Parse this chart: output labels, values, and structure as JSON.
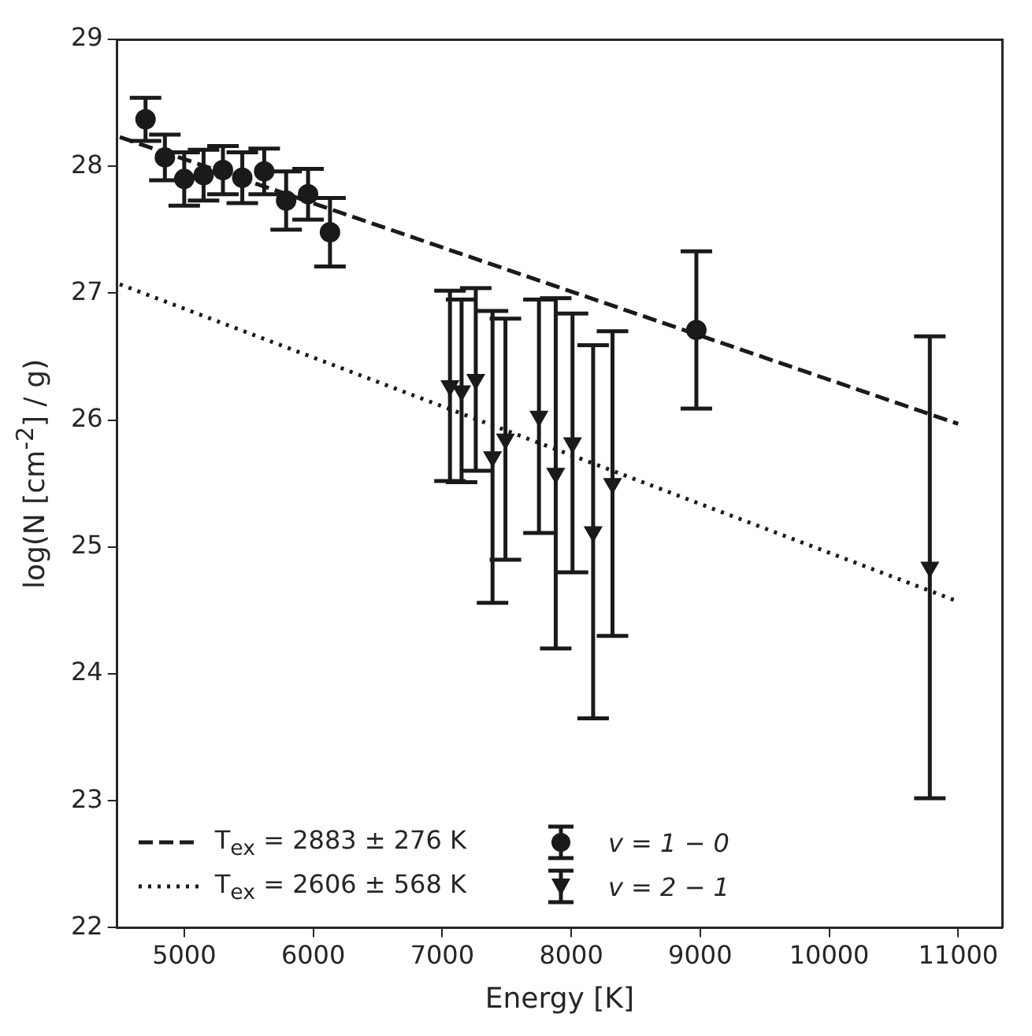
{
  "chart_data": {
    "type": "scatter",
    "xlabel": "Energy [K]",
    "ylabel": "log(N [cm$^{-2}$] / g)",
    "xlim": [
      4480,
      11340
    ],
    "ylim": [
      22,
      29
    ],
    "xticks": [
      5000,
      6000,
      7000,
      8000,
      9000,
      10000,
      11000
    ],
    "yticks": [
      22,
      23,
      24,
      25,
      26,
      27,
      28,
      29
    ],
    "grid": false,
    "legend": "bottom left",
    "series": [
      {
        "type": "line",
        "name": "T$_{ex}$ = 2883 ± 276 K",
        "color": "#1a1a1a",
        "line_style": "dashed",
        "marker": "none",
        "x": [
          4500,
          11000
        ],
        "values": [
          28.23,
          25.97
        ]
      },
      {
        "type": "line",
        "name": "T$_{ex}$ = 2606 ± 568 K",
        "color": "#1a1a1a",
        "line_style": "dotted",
        "marker": "none",
        "x": [
          4500,
          11000
        ],
        "values": [
          27.07,
          24.57
        ]
      },
      {
        "name": "v = 1 − 0",
        "color": "#1a1a1a",
        "marker": "circle",
        "x": [
          4700,
          4850,
          5000,
          5150,
          5300,
          5450,
          5620,
          5790,
          5960,
          6130,
          8970
        ],
        "values": [
          28.37,
          28.07,
          27.9,
          27.93,
          27.97,
          27.91,
          27.96,
          27.73,
          27.78,
          27.48,
          26.71
        ],
        "errors": [
          0.17,
          0.18,
          0.21,
          0.2,
          0.19,
          0.2,
          0.18,
          0.23,
          0.2,
          0.27,
          0.62
        ]
      },
      {
        "name": "v = 2 − 1",
        "color": "#1a1a1a",
        "marker": "triangle",
        "x": [
          7060,
          7150,
          7260,
          7390,
          7490,
          7750,
          7880,
          8010,
          8170,
          8320,
          10780
        ],
        "values": [
          26.27,
          26.23,
          26.32,
          25.71,
          25.85,
          26.03,
          25.58,
          25.82,
          25.12,
          25.5,
          24.84
        ],
        "errors": [
          0.75,
          0.72,
          0.72,
          1.15,
          0.95,
          0.92,
          1.38,
          1.02,
          1.47,
          1.2,
          1.82
        ]
      }
    ]
  }
}
